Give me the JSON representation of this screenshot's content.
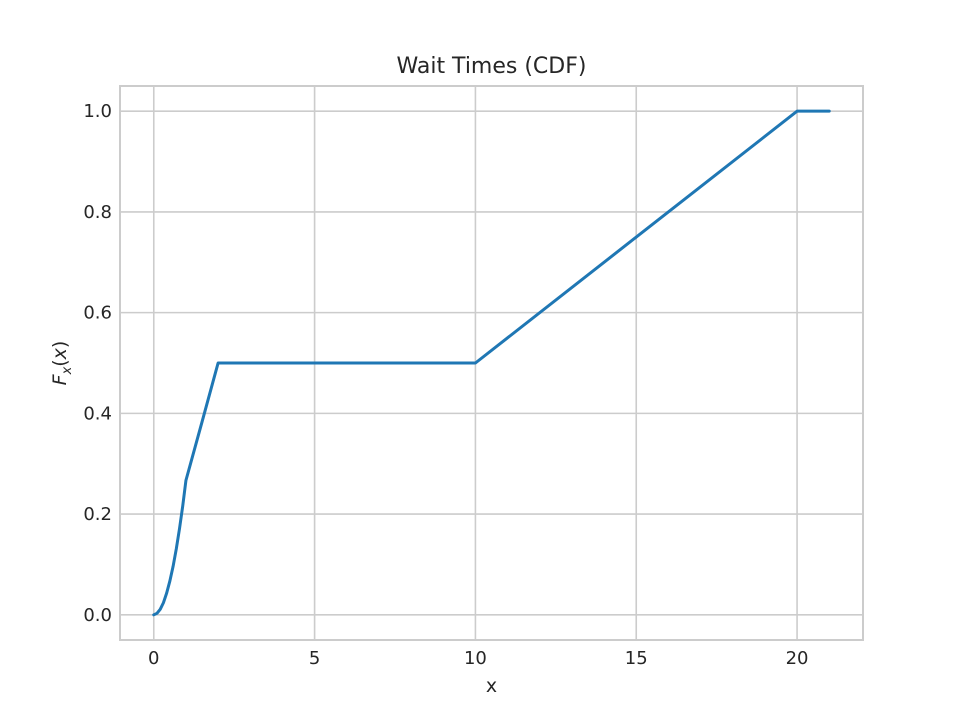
{
  "chart_data": {
    "type": "line",
    "title": "Wait Times (CDF)",
    "xlabel": "x",
    "ylabel": "F_x(x)",
    "xlim": [
      -1.05,
      22.05
    ],
    "ylim": [
      -0.05,
      1.05
    ],
    "grid": true,
    "x_ticks": [
      0,
      5,
      10,
      15,
      20
    ],
    "y_ticks": [
      0.0,
      0.2,
      0.4,
      0.6,
      0.8,
      1.0
    ],
    "x_tick_labels": [
      "0",
      "5",
      "10",
      "15",
      "20"
    ],
    "y_tick_labels": [
      "0.0",
      "0.2",
      "0.4",
      "0.6",
      "0.8",
      "1.0"
    ],
    "series": [
      {
        "color": "#1f77b4",
        "x": [
          0,
          0.1,
          0.2,
          0.3,
          0.4,
          0.5,
          0.6,
          0.7,
          0.8,
          0.9,
          1.0,
          1.5,
          2.0,
          5,
          10,
          15,
          20,
          21
        ],
        "y": [
          0,
          0.003,
          0.011,
          0.024,
          0.043,
          0.067,
          0.096,
          0.131,
          0.171,
          0.216,
          0.267,
          0.383,
          0.5,
          0.5,
          0.5,
          0.75,
          1.0,
          1.0
        ]
      }
    ]
  }
}
